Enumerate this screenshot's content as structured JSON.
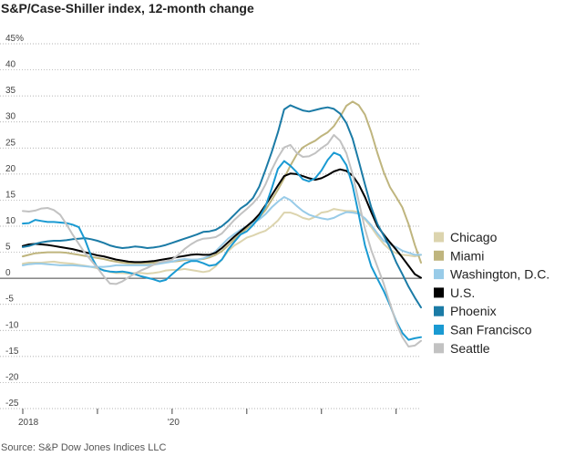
{
  "chart_data": {
    "type": "line",
    "title": "S&P/Case-Shiller index, 12-month change",
    "source": "Source: S&P Dow Jones Indices LLC",
    "ylim": [
      -25,
      45
    ],
    "yticks": [
      {
        "value": 45,
        "label": "45%"
      },
      {
        "value": 40,
        "label": "40"
      },
      {
        "value": 35,
        "label": "35"
      },
      {
        "value": 30,
        "label": "30"
      },
      {
        "value": 25,
        "label": "25"
      },
      {
        "value": 20,
        "label": "20"
      },
      {
        "value": 15,
        "label": "15"
      },
      {
        "value": 10,
        "label": "10"
      },
      {
        "value": 5,
        "label": "5"
      },
      {
        "value": 0,
        "label": "0"
      },
      {
        "value": -5,
        "label": "-5"
      },
      {
        "value": -10,
        "label": "-10"
      },
      {
        "value": -15,
        "label": "-15"
      },
      {
        "value": -20,
        "label": "-20"
      },
      {
        "value": -25,
        "label": "-25"
      }
    ],
    "xlim": [
      "2018-01",
      "2023-05"
    ],
    "x_year_ticks": [
      "2018-01",
      "2019-01",
      "2020-01",
      "2021-01",
      "2022-01",
      "2023-01"
    ],
    "x_labels": [
      {
        "date": "2018-01",
        "label": "2018"
      },
      {
        "date": "2020-01",
        "label": "'20"
      }
    ],
    "grid": "horizontal-dotted",
    "legend_position": "right",
    "x": [
      "2018-01",
      "2018-02",
      "2018-03",
      "2018-04",
      "2018-05",
      "2018-06",
      "2018-07",
      "2018-08",
      "2018-09",
      "2018-10",
      "2018-11",
      "2018-12",
      "2019-01",
      "2019-02",
      "2019-03",
      "2019-04",
      "2019-05",
      "2019-06",
      "2019-07",
      "2019-08",
      "2019-09",
      "2019-10",
      "2019-11",
      "2019-12",
      "2020-01",
      "2020-02",
      "2020-03",
      "2020-04",
      "2020-05",
      "2020-06",
      "2020-07",
      "2020-08",
      "2020-09",
      "2020-10",
      "2020-11",
      "2020-12",
      "2021-01",
      "2021-02",
      "2021-03",
      "2021-04",
      "2021-05",
      "2021-06",
      "2021-07",
      "2021-08",
      "2021-09",
      "2021-10",
      "2021-11",
      "2021-12",
      "2022-01",
      "2022-02",
      "2022-03",
      "2022-04",
      "2022-05",
      "2022-06",
      "2022-07",
      "2022-08",
      "2022-09",
      "2022-10",
      "2022-11",
      "2022-12",
      "2023-01",
      "2023-02",
      "2023-03",
      "2023-04",
      "2023-05"
    ],
    "series": [
      {
        "name": "Chicago",
        "color": "#dcd4ae",
        "values": [
          2.8,
          3.0,
          3.0,
          3.0,
          3.1,
          3.2,
          3.0,
          2.9,
          2.8,
          2.6,
          2.4,
          2.2,
          1.9,
          1.6,
          1.2,
          1.0,
          1.0,
          0.9,
          1.0,
          1.0,
          0.9,
          1.0,
          1.2,
          1.5,
          1.6,
          1.6,
          1.8,
          1.6,
          1.4,
          1.2,
          1.4,
          2.3,
          3.6,
          5.2,
          6.3,
          7.0,
          7.8,
          8.2,
          8.7,
          9.1,
          10.0,
          11.1,
          12.6,
          12.6,
          12.2,
          11.6,
          11.3,
          11.8,
          12.6,
          12.8,
          13.3,
          13.1,
          12.9,
          12.9,
          12.7,
          11.3,
          9.8,
          8.1,
          6.6,
          5.5,
          4.8,
          4.5,
          4.4,
          4.2,
          4.5
        ]
      },
      {
        "name": "Miami",
        "color": "#bfb57e",
        "values": [
          4.2,
          4.5,
          4.8,
          4.9,
          5.0,
          5.0,
          5.0,
          4.9,
          4.7,
          4.5,
          4.3,
          4.1,
          3.9,
          3.7,
          3.4,
          3.2,
          3.0,
          2.9,
          2.9,
          2.9,
          2.9,
          3.0,
          3.1,
          3.2,
          3.2,
          3.3,
          3.5,
          3.5,
          3.6,
          3.7,
          4.0,
          4.5,
          5.2,
          6.3,
          7.5,
          8.5,
          9.6,
          10.6,
          11.7,
          13.1,
          15.0,
          17.0,
          19.2,
          21.6,
          23.7,
          25.1,
          25.8,
          26.4,
          27.3,
          28.0,
          29.2,
          31.0,
          33.1,
          33.9,
          33.2,
          31.4,
          28.0,
          24.0,
          20.4,
          17.5,
          15.6,
          13.6,
          10.4,
          6.4,
          3.0
        ]
      },
      {
        "name": "Washington, D.C.",
        "color": "#98cbe8",
        "values": [
          2.5,
          2.7,
          2.8,
          2.8,
          2.7,
          2.6,
          2.5,
          2.5,
          2.5,
          2.4,
          2.3,
          2.2,
          2.2,
          2.2,
          2.3,
          2.5,
          2.5,
          2.5,
          2.5,
          2.5,
          2.5,
          2.6,
          2.8,
          3.0,
          3.2,
          3.5,
          3.7,
          3.6,
          3.6,
          3.8,
          4.3,
          5.2,
          6.4,
          7.6,
          8.5,
          9.3,
          10.0,
          10.6,
          11.3,
          12.3,
          13.6,
          14.7,
          15.6,
          15.0,
          13.9,
          12.9,
          12.2,
          11.8,
          11.5,
          11.3,
          11.6,
          12.2,
          12.7,
          12.6,
          12.4,
          11.5,
          10.2,
          8.6,
          7.2,
          6.5,
          6.0,
          5.3,
          4.9,
          4.5,
          4.5
        ]
      },
      {
        "name": "U.S.",
        "color": "#000000",
        "values": [
          6.2,
          6.5,
          6.6,
          6.5,
          6.4,
          6.2,
          6.0,
          5.8,
          5.6,
          5.3,
          5.0,
          4.7,
          4.4,
          4.2,
          3.9,
          3.6,
          3.4,
          3.2,
          3.1,
          3.1,
          3.2,
          3.3,
          3.5,
          3.7,
          3.9,
          4.1,
          4.3,
          4.5,
          4.6,
          4.5,
          4.5,
          4.9,
          5.8,
          6.9,
          8.0,
          9.0,
          10.0,
          11.0,
          12.3,
          14.0,
          15.9,
          17.8,
          19.6,
          20.1,
          20.0,
          19.6,
          19.2,
          18.9,
          19.2,
          19.8,
          20.5,
          20.9,
          20.6,
          19.7,
          18.0,
          15.6,
          12.7,
          10.0,
          8.4,
          6.9,
          5.5,
          4.0,
          2.4,
          0.8,
          0.1
        ]
      },
      {
        "name": "Phoenix",
        "color": "#1b7ba6",
        "values": [
          6.0,
          6.2,
          6.6,
          6.9,
          7.1,
          7.2,
          7.2,
          7.3,
          7.5,
          7.6,
          7.7,
          7.5,
          7.2,
          6.8,
          6.3,
          6.0,
          5.8,
          5.9,
          6.1,
          6.0,
          5.8,
          5.9,
          6.1,
          6.4,
          6.8,
          7.2,
          7.6,
          8.0,
          8.4,
          8.9,
          9.0,
          9.3,
          10.0,
          11.0,
          12.2,
          13.4,
          14.2,
          15.4,
          17.6,
          20.8,
          24.2,
          28.0,
          32.4,
          33.2,
          32.7,
          32.2,
          32.0,
          32.3,
          32.6,
          32.8,
          32.5,
          31.6,
          29.8,
          26.8,
          22.5,
          18.0,
          13.6,
          10.4,
          8.2,
          5.9,
          3.1,
          0.8,
          -1.6,
          -3.7,
          -5.6
        ]
      },
      {
        "name": "San Francisco",
        "color": "#1a9ad2",
        "values": [
          10.5,
          10.6,
          11.2,
          11.0,
          10.8,
          10.8,
          10.7,
          10.6,
          10.3,
          9.8,
          7.4,
          4.2,
          2.0,
          1.5,
          1.3,
          1.2,
          1.3,
          1.1,
          0.8,
          0.4,
          0.1,
          -0.2,
          -0.6,
          -0.3,
          0.8,
          1.8,
          2.8,
          3.3,
          3.3,
          2.9,
          2.4,
          2.6,
          3.6,
          5.5,
          7.0,
          8.4,
          9.0,
          10.2,
          11.7,
          13.8,
          17.2,
          21.0,
          22.5,
          21.6,
          20.4,
          19.0,
          18.6,
          19.2,
          20.7,
          22.7,
          24.1,
          23.6,
          21.7,
          17.8,
          12.2,
          6.3,
          2.3,
          -0.1,
          -2.4,
          -5.1,
          -8.2,
          -10.5,
          -11.8,
          -11.5,
          -11.3
        ]
      },
      {
        "name": "Seattle",
        "color": "#c2c2c2",
        "values": [
          12.9,
          12.8,
          13.0,
          13.4,
          13.5,
          13.1,
          12.2,
          10.4,
          8.4,
          6.6,
          4.8,
          3.4,
          2.0,
          0.4,
          -1.0,
          -1.1,
          -0.6,
          0.2,
          0.9,
          1.5,
          2.0,
          2.6,
          3.1,
          3.3,
          3.6,
          4.5,
          5.6,
          6.5,
          7.2,
          7.6,
          7.7,
          7.9,
          8.6,
          9.9,
          11.2,
          12.3,
          13.3,
          14.4,
          15.8,
          18.0,
          20.8,
          23.2,
          25.1,
          25.6,
          24.1,
          23.3,
          23.4,
          24.0,
          25.0,
          25.8,
          27.5,
          26.4,
          24.0,
          20.0,
          14.7,
          9.5,
          5.4,
          2.2,
          -1.0,
          -4.8,
          -8.5,
          -11.3,
          -13.1,
          -12.9,
          -12.0
        ]
      }
    ]
  }
}
